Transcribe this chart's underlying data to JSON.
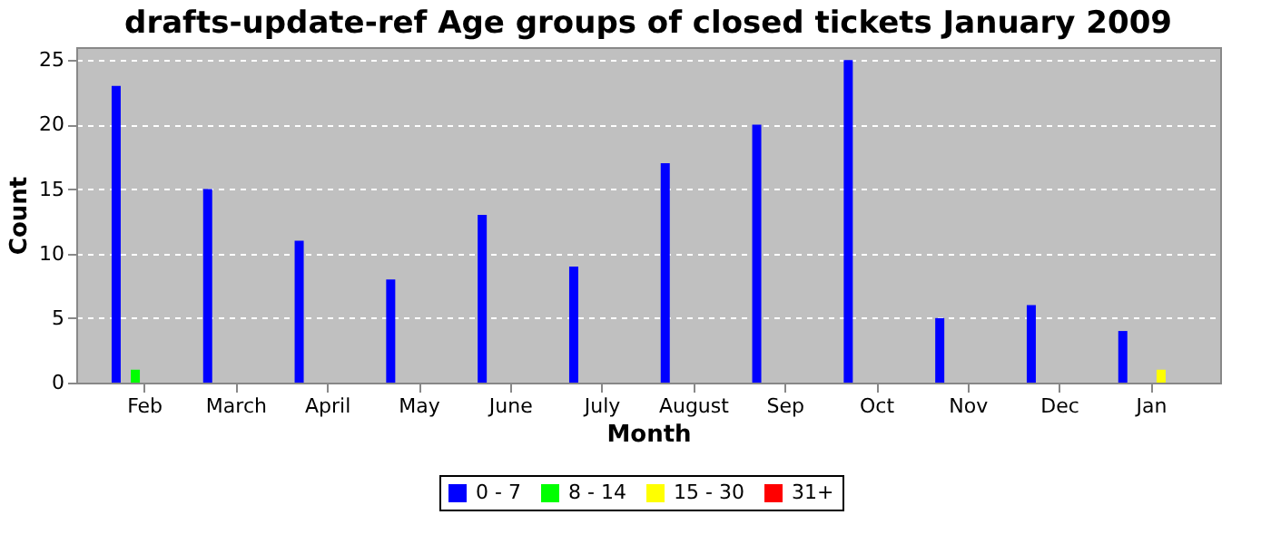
{
  "chart_data": {
    "type": "bar",
    "title": "drafts-update-ref Age groups of closed tickets January 2009",
    "xlabel": "Month",
    "ylabel": "Count",
    "categories": [
      "Feb",
      "March",
      "April",
      "May",
      "June",
      "July",
      "August",
      "Sep",
      "Oct",
      "Nov",
      "Dec",
      "Jan"
    ],
    "series": [
      {
        "name": "0 - 7",
        "color": "#0000ff",
        "values": [
          23,
          15,
          11,
          8,
          13,
          9,
          17,
          20,
          25,
          5,
          6,
          4
        ]
      },
      {
        "name": "8 - 14",
        "color": "#00ff00",
        "values": [
          1,
          0,
          0,
          0,
          0,
          0,
          0,
          0,
          0,
          0,
          0,
          0
        ]
      },
      {
        "name": "15 - 30",
        "color": "#ffff00",
        "values": [
          0,
          0,
          0,
          0,
          0,
          0,
          0,
          0,
          0,
          0,
          0,
          1
        ]
      },
      {
        "name": "31+",
        "color": "#ff0000",
        "values": [
          0,
          0,
          0,
          0,
          0,
          0,
          0,
          0,
          0,
          0,
          0,
          0
        ]
      }
    ],
    "ylim": [
      0,
      26
    ],
    "yticks": [
      0,
      5,
      10,
      15,
      20,
      25
    ],
    "grid": "y",
    "legend": "bottom"
  }
}
